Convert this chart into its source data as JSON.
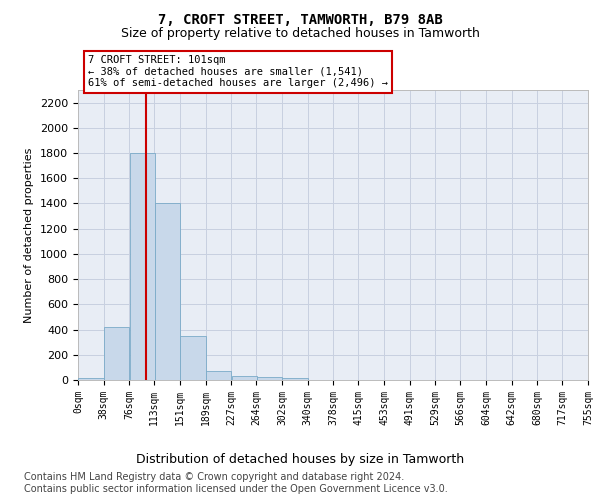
{
  "title": "7, CROFT STREET, TAMWORTH, B79 8AB",
  "subtitle": "Size of property relative to detached houses in Tamworth",
  "xlabel": "Distribution of detached houses by size in Tamworth",
  "ylabel": "Number of detached properties",
  "bar_color": "#c8d8ea",
  "bar_edge_color": "#7aaac8",
  "grid_color": "#c8d0e0",
  "background_color": "#e8edf5",
  "vline_x": 101,
  "vline_color": "#cc0000",
  "annotation_box_color": "#cc0000",
  "annotation_text": "7 CROFT STREET: 101sqm\n← 38% of detached houses are smaller (1,541)\n61% of semi-detached houses are larger (2,496) →",
  "annotation_fontsize": 7.5,
  "bin_edges": [
    0,
    38,
    76,
    113,
    151,
    189,
    227,
    264,
    302,
    340,
    378,
    415,
    453,
    491,
    529,
    566,
    604,
    642,
    680,
    717,
    755
  ],
  "bin_labels": [
    "0sqm",
    "38sqm",
    "76sqm",
    "113sqm",
    "151sqm",
    "189sqm",
    "227sqm",
    "264sqm",
    "302sqm",
    "340sqm",
    "378sqm",
    "415sqm",
    "453sqm",
    "491sqm",
    "529sqm",
    "566sqm",
    "604sqm",
    "642sqm",
    "680sqm",
    "717sqm",
    "755sqm"
  ],
  "bar_heights": [
    15,
    420,
    1800,
    1400,
    350,
    75,
    28,
    20,
    15,
    0,
    0,
    0,
    0,
    0,
    0,
    0,
    0,
    0,
    0,
    0
  ],
  "ylim": [
    0,
    2300
  ],
  "yticks": [
    0,
    200,
    400,
    600,
    800,
    1000,
    1200,
    1400,
    1600,
    1800,
    2000,
    2200
  ],
  "footer_text": "Contains HM Land Registry data © Crown copyright and database right 2024.\nContains public sector information licensed under the Open Government Licence v3.0.",
  "footer_fontsize": 7,
  "title_fontsize": 10,
  "subtitle_fontsize": 9,
  "ylabel_fontsize": 8,
  "xlabel_fontsize": 9,
  "ytick_fontsize": 8,
  "xtick_fontsize": 7
}
